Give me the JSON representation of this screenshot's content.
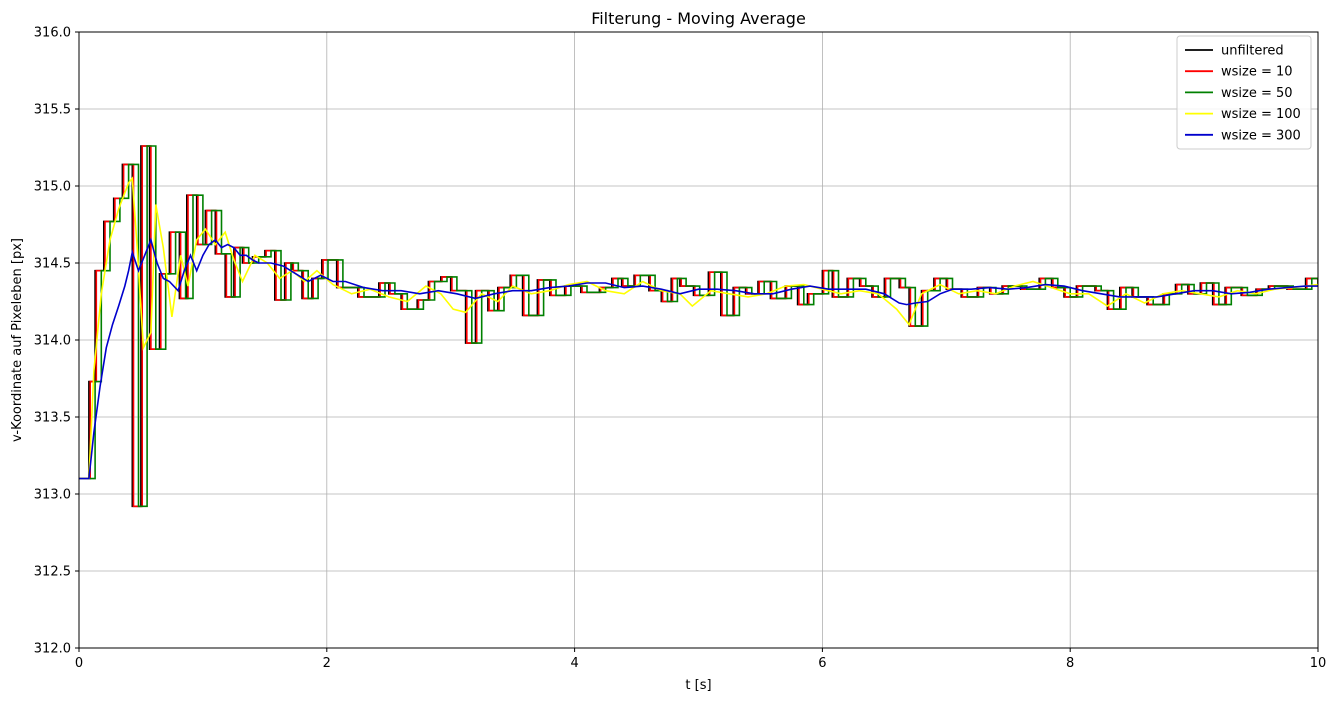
{
  "chart_data": {
    "type": "line",
    "title": "Filterung - Moving Average",
    "xlabel": "t [s]",
    "ylabel": "v-Koordinate auf Pixeleben [px]",
    "xlim": [
      0,
      10
    ],
    "ylim": [
      312.0,
      316.0
    ],
    "xticks": [
      0,
      2,
      4,
      6,
      8,
      10
    ],
    "xtick_labels": [
      "0",
      "2",
      "4",
      "6",
      "8",
      "10"
    ],
    "yticks": [
      312.0,
      312.5,
      313.0,
      313.5,
      314.0,
      314.5,
      315.0,
      315.5,
      316.0
    ],
    "ytick_labels": [
      "312.0",
      "312.5",
      "313.0",
      "313.5",
      "314.0",
      "314.5",
      "315.0",
      "315.5",
      "316.0"
    ],
    "grid": true,
    "legend_position": "top-right",
    "series": [
      {
        "name": "unfiltered",
        "color": "#000000",
        "step": true,
        "x": [
          0.0,
          0.08,
          0.13,
          0.2,
          0.28,
          0.35,
          0.43,
          0.5,
          0.57,
          0.65,
          0.73,
          0.81,
          0.87,
          0.95,
          1.02,
          1.1,
          1.18,
          1.25,
          1.32,
          1.4,
          1.5,
          1.58,
          1.66,
          1.72,
          1.8,
          1.88,
          1.96,
          2.08,
          2.25,
          2.42,
          2.5,
          2.6,
          2.73,
          2.82,
          2.92,
          3.0,
          3.12,
          3.2,
          3.3,
          3.38,
          3.48,
          3.58,
          3.7,
          3.8,
          3.92,
          4.05,
          4.2,
          4.3,
          4.38,
          4.48,
          4.6,
          4.7,
          4.78,
          4.85,
          4.96,
          5.08,
          5.18,
          5.28,
          5.38,
          5.48,
          5.58,
          5.7,
          5.8,
          5.88,
          6.0,
          6.08,
          6.2,
          6.3,
          6.4,
          6.5,
          6.62,
          6.7,
          6.8,
          6.9,
          7.0,
          7.12,
          7.25,
          7.35,
          7.45,
          7.6,
          7.75,
          7.85,
          7.95,
          8.05,
          8.2,
          8.3,
          8.4,
          8.5,
          8.62,
          8.75,
          8.85,
          8.95,
          9.05,
          9.15,
          9.25,
          9.38,
          9.5,
          9.6,
          9.75,
          9.9,
          10.0
        ],
        "y": [
          313.1,
          313.73,
          314.45,
          314.77,
          314.92,
          315.14,
          312.92,
          315.26,
          313.94,
          314.43,
          314.7,
          314.27,
          314.94,
          314.62,
          314.84,
          314.56,
          314.28,
          314.6,
          314.5,
          314.54,
          314.58,
          314.26,
          314.5,
          314.45,
          314.27,
          314.4,
          314.52,
          314.34,
          314.28,
          314.37,
          314.3,
          314.2,
          314.26,
          314.38,
          314.41,
          314.32,
          313.98,
          314.32,
          314.19,
          314.34,
          314.42,
          314.16,
          314.39,
          314.29,
          314.35,
          314.31,
          314.34,
          314.4,
          314.35,
          314.42,
          314.32,
          314.25,
          314.4,
          314.35,
          314.29,
          314.44,
          314.16,
          314.34,
          314.3,
          314.38,
          314.27,
          314.35,
          314.23,
          314.3,
          314.45,
          314.28,
          314.4,
          314.35,
          314.28,
          314.4,
          314.34,
          314.09,
          314.32,
          314.4,
          314.33,
          314.28,
          314.34,
          314.3,
          314.35,
          314.33,
          314.4,
          314.34,
          314.28,
          314.35,
          314.32,
          314.2,
          314.34,
          314.28,
          314.23,
          314.3,
          314.36,
          314.3,
          314.37,
          314.23,
          314.34,
          314.29,
          314.33,
          314.35,
          314.33,
          314.4,
          314.35
        ]
      },
      {
        "name": "wsize = 10",
        "color": "#ff0000",
        "step": true,
        "x": [
          0.0,
          0.08,
          0.13,
          0.2,
          0.28,
          0.35,
          0.43,
          0.5,
          0.57,
          0.65,
          0.73,
          0.81,
          0.87,
          0.95,
          1.02,
          1.1,
          1.18,
          1.25,
          1.32,
          1.4,
          1.5,
          1.58,
          1.66,
          1.72,
          1.8,
          1.88,
          1.96,
          2.08,
          2.25,
          2.42,
          2.5,
          2.6,
          2.73,
          2.82,
          2.92,
          3.0,
          3.12,
          3.2,
          3.3,
          3.38,
          3.48,
          3.58,
          3.7,
          3.8,
          3.92,
          4.05,
          4.2,
          4.3,
          4.38,
          4.48,
          4.6,
          4.7,
          4.78,
          4.85,
          4.96,
          5.08,
          5.18,
          5.28,
          5.38,
          5.48,
          5.58,
          5.7,
          5.8,
          5.88,
          6.0,
          6.08,
          6.2,
          6.3,
          6.4,
          6.5,
          6.62,
          6.7,
          6.8,
          6.9,
          7.0,
          7.12,
          7.25,
          7.35,
          7.45,
          7.6,
          7.75,
          7.85,
          7.95,
          8.05,
          8.2,
          8.3,
          8.4,
          8.5,
          8.62,
          8.75,
          8.85,
          8.95,
          9.05,
          9.15,
          9.25,
          9.38,
          9.5,
          9.6,
          9.75,
          9.9,
          10.0
        ],
        "y": [
          313.1,
          313.73,
          314.45,
          314.77,
          314.92,
          315.14,
          312.92,
          315.26,
          313.94,
          314.43,
          314.7,
          314.27,
          314.94,
          314.62,
          314.84,
          314.56,
          314.28,
          314.6,
          314.5,
          314.54,
          314.58,
          314.26,
          314.5,
          314.45,
          314.27,
          314.4,
          314.52,
          314.34,
          314.28,
          314.37,
          314.3,
          314.2,
          314.26,
          314.38,
          314.41,
          314.32,
          313.98,
          314.32,
          314.19,
          314.34,
          314.42,
          314.16,
          314.39,
          314.29,
          314.35,
          314.31,
          314.34,
          314.4,
          314.35,
          314.42,
          314.32,
          314.25,
          314.4,
          314.35,
          314.29,
          314.44,
          314.16,
          314.34,
          314.3,
          314.38,
          314.27,
          314.35,
          314.23,
          314.3,
          314.45,
          314.28,
          314.4,
          314.35,
          314.28,
          314.4,
          314.34,
          314.09,
          314.32,
          314.4,
          314.33,
          314.28,
          314.34,
          314.3,
          314.35,
          314.33,
          314.4,
          314.34,
          314.28,
          314.35,
          314.32,
          314.2,
          314.34,
          314.28,
          314.23,
          314.3,
          314.36,
          314.3,
          314.37,
          314.23,
          314.34,
          314.29,
          314.33,
          314.35,
          314.33,
          314.4,
          314.35
        ],
        "lag": 0.01
      },
      {
        "name": "wsize = 50",
        "color": "#008000",
        "step": true,
        "x": [
          0.0,
          0.08,
          0.13,
          0.2,
          0.28,
          0.35,
          0.43,
          0.5,
          0.57,
          0.65,
          0.73,
          0.81,
          0.87,
          0.95,
          1.02,
          1.1,
          1.18,
          1.25,
          1.32,
          1.4,
          1.5,
          1.58,
          1.66,
          1.72,
          1.8,
          1.88,
          1.96,
          2.08,
          2.25,
          2.42,
          2.5,
          2.6,
          2.73,
          2.82,
          2.92,
          3.0,
          3.12,
          3.2,
          3.3,
          3.38,
          3.48,
          3.58,
          3.7,
          3.8,
          3.92,
          4.05,
          4.2,
          4.3,
          4.38,
          4.48,
          4.6,
          4.7,
          4.78,
          4.85,
          4.96,
          5.08,
          5.18,
          5.28,
          5.38,
          5.48,
          5.58,
          5.7,
          5.8,
          5.88,
          6.0,
          6.08,
          6.2,
          6.3,
          6.4,
          6.5,
          6.62,
          6.7,
          6.8,
          6.9,
          7.0,
          7.12,
          7.25,
          7.35,
          7.45,
          7.6,
          7.75,
          7.85,
          7.95,
          8.05,
          8.2,
          8.3,
          8.4,
          8.5,
          8.62,
          8.75,
          8.85,
          8.95,
          9.05,
          9.15,
          9.25,
          9.38,
          9.5,
          9.6,
          9.75,
          9.9,
          10.0
        ],
        "y": [
          313.1,
          313.73,
          314.45,
          314.77,
          314.92,
          315.14,
          312.92,
          315.26,
          313.94,
          314.43,
          314.7,
          314.27,
          314.94,
          314.62,
          314.84,
          314.56,
          314.28,
          314.6,
          314.5,
          314.54,
          314.58,
          314.26,
          314.5,
          314.45,
          314.27,
          314.4,
          314.52,
          314.34,
          314.28,
          314.37,
          314.3,
          314.2,
          314.26,
          314.38,
          314.41,
          314.32,
          313.98,
          314.32,
          314.19,
          314.34,
          314.42,
          314.16,
          314.39,
          314.29,
          314.35,
          314.31,
          314.34,
          314.4,
          314.35,
          314.42,
          314.32,
          314.25,
          314.4,
          314.35,
          314.29,
          314.44,
          314.16,
          314.34,
          314.3,
          314.38,
          314.27,
          314.35,
          314.23,
          314.3,
          314.45,
          314.28,
          314.4,
          314.35,
          314.28,
          314.4,
          314.34,
          314.09,
          314.32,
          314.4,
          314.33,
          314.28,
          314.34,
          314.3,
          314.35,
          314.33,
          314.4,
          314.34,
          314.28,
          314.35,
          314.32,
          314.2,
          314.34,
          314.28,
          314.23,
          314.3,
          314.36,
          314.3,
          314.37,
          314.23,
          314.34,
          314.29,
          314.33,
          314.35,
          314.33,
          314.4,
          314.35
        ],
        "lag": 0.05
      },
      {
        "name": "wsize = 100",
        "color": "#ffff00",
        "x": [
          0.0,
          0.08,
          0.12,
          0.18,
          0.25,
          0.32,
          0.4,
          0.43,
          0.47,
          0.52,
          0.58,
          0.62,
          0.68,
          0.75,
          0.82,
          0.88,
          0.95,
          1.02,
          1.1,
          1.18,
          1.25,
          1.32,
          1.42,
          1.52,
          1.62,
          1.72,
          1.82,
          1.92,
          2.05,
          2.2,
          2.35,
          2.5,
          2.65,
          2.8,
          2.92,
          3.02,
          3.12,
          3.25,
          3.38,
          3.5,
          3.65,
          3.8,
          3.95,
          4.1,
          4.25,
          4.4,
          4.55,
          4.7,
          4.85,
          4.95,
          5.1,
          5.25,
          5.4,
          5.55,
          5.7,
          5.85,
          6.0,
          6.15,
          6.3,
          6.45,
          6.6,
          6.7,
          6.8,
          6.95,
          7.1,
          7.25,
          7.4,
          7.55,
          7.7,
          7.85,
          8.0,
          8.15,
          8.3,
          8.45,
          8.6,
          8.75,
          8.9,
          9.05,
          9.2,
          9.35,
          9.5,
          9.65,
          9.8,
          10.0
        ],
        "y": [
          313.1,
          313.1,
          313.8,
          314.3,
          314.65,
          314.85,
          315.02,
          315.05,
          314.6,
          313.95,
          314.05,
          314.88,
          314.6,
          314.15,
          314.55,
          314.35,
          314.65,
          314.72,
          314.62,
          314.7,
          314.52,
          314.38,
          314.55,
          314.5,
          314.4,
          314.45,
          314.38,
          314.45,
          314.36,
          314.3,
          314.33,
          314.28,
          314.25,
          314.35,
          314.3,
          314.2,
          314.18,
          314.3,
          314.25,
          314.35,
          314.3,
          314.32,
          314.36,
          314.38,
          314.32,
          314.3,
          314.38,
          314.32,
          314.3,
          314.22,
          314.32,
          314.3,
          314.28,
          314.3,
          314.35,
          314.36,
          314.33,
          314.3,
          314.32,
          314.3,
          314.2,
          314.1,
          314.3,
          314.36,
          314.3,
          314.32,
          314.3,
          314.35,
          314.38,
          314.34,
          314.3,
          314.3,
          314.22,
          314.3,
          314.24,
          314.3,
          314.32,
          314.3,
          314.28,
          314.32,
          314.3,
          314.33,
          314.34,
          314.36
        ]
      },
      {
        "name": "wsize = 300",
        "color": "#0000cd",
        "x": [
          0.0,
          0.08,
          0.12,
          0.17,
          0.22,
          0.27,
          0.32,
          0.37,
          0.4,
          0.43,
          0.48,
          0.53,
          0.58,
          0.63,
          0.68,
          0.73,
          0.8,
          0.85,
          0.9,
          0.95,
          1.0,
          1.05,
          1.1,
          1.15,
          1.2,
          1.25,
          1.3,
          1.35,
          1.4,
          1.45,
          1.55,
          1.65,
          1.75,
          1.85,
          1.95,
          2.05,
          2.15,
          2.3,
          2.45,
          2.6,
          2.75,
          2.9,
          3.05,
          3.2,
          3.35,
          3.5,
          3.65,
          3.8,
          3.95,
          4.1,
          4.25,
          4.4,
          4.55,
          4.7,
          4.85,
          5.0,
          5.15,
          5.3,
          5.45,
          5.6,
          5.75,
          5.9,
          6.05,
          6.2,
          6.35,
          6.5,
          6.62,
          6.68,
          6.75,
          6.85,
          6.95,
          7.05,
          7.2,
          7.35,
          7.5,
          7.65,
          7.8,
          7.95,
          8.1,
          8.25,
          8.4,
          8.55,
          8.7,
          8.85,
          9.0,
          9.15,
          9.3,
          9.45,
          9.6,
          9.75,
          9.9,
          10.0
        ],
        "y": [
          313.1,
          313.1,
          313.4,
          313.7,
          313.95,
          314.1,
          314.22,
          314.35,
          314.45,
          314.57,
          314.45,
          314.55,
          314.65,
          314.5,
          314.4,
          314.38,
          314.32,
          314.45,
          314.55,
          314.45,
          314.55,
          314.62,
          314.65,
          314.6,
          314.62,
          314.6,
          314.55,
          314.55,
          314.52,
          314.5,
          314.5,
          314.48,
          314.43,
          314.38,
          314.42,
          314.38,
          314.38,
          314.34,
          314.32,
          314.32,
          314.3,
          314.32,
          314.3,
          314.27,
          314.3,
          314.32,
          314.32,
          314.34,
          314.35,
          314.37,
          314.37,
          314.34,
          314.35,
          314.33,
          314.3,
          314.33,
          314.33,
          314.32,
          314.3,
          314.3,
          314.33,
          314.35,
          314.33,
          314.33,
          314.33,
          314.3,
          314.24,
          314.23,
          314.24,
          314.25,
          314.3,
          314.33,
          314.33,
          314.34,
          314.33,
          314.34,
          314.36,
          314.35,
          314.32,
          314.3,
          314.28,
          314.28,
          314.28,
          314.3,
          314.32,
          314.32,
          314.3,
          314.31,
          314.33,
          314.34,
          314.35,
          314.35
        ]
      }
    ]
  }
}
